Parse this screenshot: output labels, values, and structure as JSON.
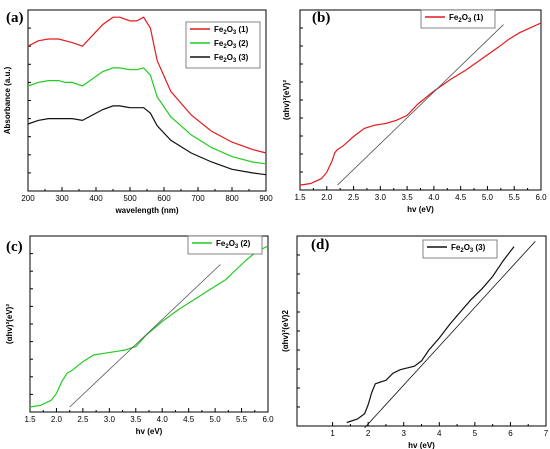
{
  "chart_data": [
    {
      "id": "a",
      "panel_label": "(a)",
      "type": "line",
      "xlabel": "wavelength (nm)",
      "ylabel": "Absorbance (a.u.)",
      "xlim": [
        200,
        900
      ],
      "x_ticks": [
        "200",
        "300",
        "400",
        "500",
        "600",
        "700",
        "800",
        "900"
      ],
      "legend_position": "top-right",
      "series": [
        {
          "name": "Fe2O3 (1)",
          "color": "#e41a1c",
          "x": [
            200,
            230,
            260,
            290,
            310,
            330,
            360,
            390,
            420,
            450,
            470,
            500,
            520,
            540,
            560,
            580,
            620,
            680,
            740,
            800,
            860,
            900
          ],
          "y": [
            0.8,
            0.83,
            0.84,
            0.84,
            0.83,
            0.82,
            0.8,
            0.86,
            0.92,
            0.96,
            0.96,
            0.94,
            0.94,
            0.96,
            0.9,
            0.72,
            0.55,
            0.42,
            0.33,
            0.27,
            0.23,
            0.21
          ]
        },
        {
          "name": "Fe2O3 (2)",
          "color": "#22cc22",
          "x": [
            200,
            230,
            260,
            290,
            310,
            330,
            360,
            390,
            420,
            450,
            470,
            500,
            520,
            540,
            560,
            580,
            620,
            680,
            740,
            800,
            860,
            900
          ],
          "y": [
            0.58,
            0.6,
            0.61,
            0.61,
            0.6,
            0.6,
            0.58,
            0.62,
            0.66,
            0.68,
            0.68,
            0.67,
            0.67,
            0.68,
            0.64,
            0.52,
            0.41,
            0.31,
            0.24,
            0.19,
            0.16,
            0.15
          ]
        },
        {
          "name": "Fe2O3 (3)",
          "color": "#111111",
          "x": [
            200,
            230,
            260,
            290,
            310,
            330,
            360,
            390,
            420,
            450,
            470,
            500,
            520,
            540,
            560,
            580,
            620,
            680,
            740,
            800,
            860,
            900
          ],
          "y": [
            0.37,
            0.39,
            0.4,
            0.4,
            0.4,
            0.4,
            0.39,
            0.42,
            0.45,
            0.47,
            0.47,
            0.46,
            0.46,
            0.46,
            0.43,
            0.36,
            0.28,
            0.21,
            0.16,
            0.12,
            0.1,
            0.09
          ]
        }
      ]
    },
    {
      "id": "b",
      "panel_label": "(b)",
      "type": "line",
      "xlabel": "hv (eV)",
      "ylabel": "(αhv)²(eV)²",
      "xlim": [
        1.5,
        6.0
      ],
      "x_ticks": [
        "1.5",
        "2.0",
        "2.5",
        "3.0",
        "3.5",
        "4.0",
        "4.5",
        "5.0",
        "5.5",
        "6.0"
      ],
      "legend_position": "top-right",
      "series": [
        {
          "name": "Fe2O3 (1)",
          "color": "#e41a1c",
          "x": [
            1.5,
            1.7,
            1.9,
            2.0,
            2.1,
            2.15,
            2.2,
            2.3,
            2.5,
            2.7,
            2.9,
            3.1,
            3.3,
            3.5,
            3.7,
            4.0,
            4.3,
            4.6,
            4.9,
            5.2,
            5.4,
            5.6,
            5.8,
            6.0
          ],
          "y": [
            0.0,
            0.01,
            0.04,
            0.08,
            0.15,
            0.2,
            0.22,
            0.24,
            0.3,
            0.35,
            0.37,
            0.38,
            0.4,
            0.43,
            0.5,
            0.58,
            0.65,
            0.71,
            0.78,
            0.85,
            0.9,
            0.94,
            0.97,
            1.0
          ]
        },
        {
          "name": "",
          "color": "#555555",
          "linear_fit": true,
          "x": [
            2.2,
            5.3
          ],
          "y": [
            0.0,
            0.99
          ]
        }
      ]
    },
    {
      "id": "c",
      "panel_label": "(c)",
      "type": "line",
      "xlabel": "hv (eV)",
      "ylabel": "(αhv)²(eV)²",
      "xlim": [
        1.5,
        6.0
      ],
      "x_ticks": [
        "1.5",
        "2.0",
        "2.5",
        "3.0",
        "3.5",
        "4.0",
        "4.5",
        "5.0",
        "5.5",
        "6.0"
      ],
      "legend_position": "top-right",
      "series": [
        {
          "name": "Fe2O3 (2)",
          "color": "#22cc22",
          "x": [
            1.5,
            1.7,
            1.9,
            2.0,
            2.1,
            2.2,
            2.3,
            2.5,
            2.7,
            2.9,
            3.1,
            3.3,
            3.5,
            3.7,
            4.0,
            4.3,
            4.6,
            4.9,
            5.2,
            5.4,
            5.6,
            5.8,
            6.0
          ],
          "y": [
            0.0,
            0.01,
            0.04,
            0.08,
            0.15,
            0.2,
            0.22,
            0.27,
            0.31,
            0.32,
            0.33,
            0.34,
            0.36,
            0.43,
            0.51,
            0.58,
            0.64,
            0.7,
            0.76,
            0.82,
            0.88,
            0.93,
            0.96
          ]
        },
        {
          "name": "",
          "color": "#555555",
          "linear_fit": true,
          "x": [
            2.25,
            5.1
          ],
          "y": [
            0.0,
            0.85
          ]
        }
      ]
    },
    {
      "id": "d",
      "panel_label": "(d)",
      "type": "line",
      "xlabel": "hv (eV)",
      "ylabel": "(αhv)²(eV)2",
      "xlim": [
        0,
        7
      ],
      "x_ticks": [
        "1",
        "2",
        "3",
        "4",
        "5",
        "6",
        "7"
      ],
      "legend_position": "top-left",
      "series": [
        {
          "name": "Fe2O3 (3)",
          "color": "#111111",
          "x": [
            1.4,
            1.7,
            1.9,
            2.0,
            2.1,
            2.2,
            2.35,
            2.5,
            2.7,
            2.9,
            3.1,
            3.3,
            3.5,
            3.7,
            4.0,
            4.3,
            4.6,
            4.9,
            5.2,
            5.5,
            5.8,
            6.1
          ],
          "y": [
            0.0,
            0.02,
            0.05,
            0.1,
            0.17,
            0.22,
            0.23,
            0.24,
            0.28,
            0.3,
            0.31,
            0.32,
            0.35,
            0.41,
            0.48,
            0.56,
            0.63,
            0.7,
            0.76,
            0.83,
            0.92,
            1.0
          ]
        },
        {
          "name": "",
          "color": "#111111",
          "linear_fit": true,
          "x": [
            1.9,
            6.7
          ],
          "y": [
            -0.03,
            1.03
          ]
        }
      ]
    }
  ]
}
